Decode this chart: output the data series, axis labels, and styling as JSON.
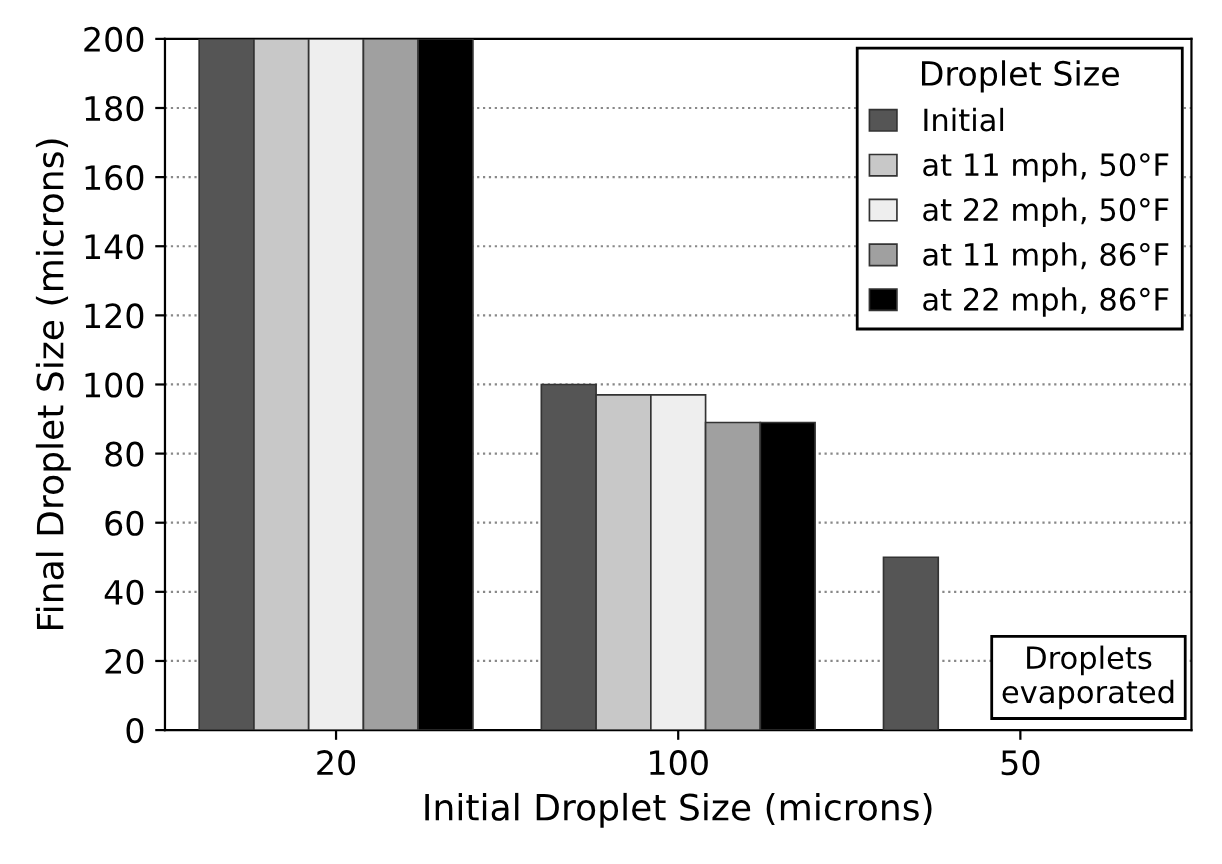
{
  "chart_data": {
    "type": "bar",
    "xlabel": "Initial Droplet Size (microns)",
    "ylabel": "Final Droplet Size (microns)",
    "categories": [
      "20",
      "100",
      "50"
    ],
    "series": [
      {
        "name": "Initial",
        "color": "#555555",
        "values": [
          200,
          100,
          50
        ]
      },
      {
        "name": "at 11 mph, 50°F",
        "color": "#c8c8c8",
        "values": [
          200,
          97,
          null
        ]
      },
      {
        "name": "at 22 mph, 50°F",
        "color": "#eeeeee",
        "values": [
          200,
          97,
          null
        ]
      },
      {
        "name": "at 11 mph, 86°F",
        "color": "#a0a0a0",
        "values": [
          200,
          89,
          null
        ]
      },
      {
        "name": "at 22 mph, 86°F",
        "color": "#000000",
        "values": [
          200,
          89,
          null
        ]
      }
    ],
    "legend_title": "Droplet Size",
    "legend": "top right",
    "ylim": [
      0,
      200
    ],
    "yticks": [
      0,
      20,
      40,
      60,
      80,
      100,
      120,
      140,
      160,
      180,
      200
    ],
    "grid": "y",
    "annotations": [
      "Droplets\nevaporated"
    ]
  }
}
